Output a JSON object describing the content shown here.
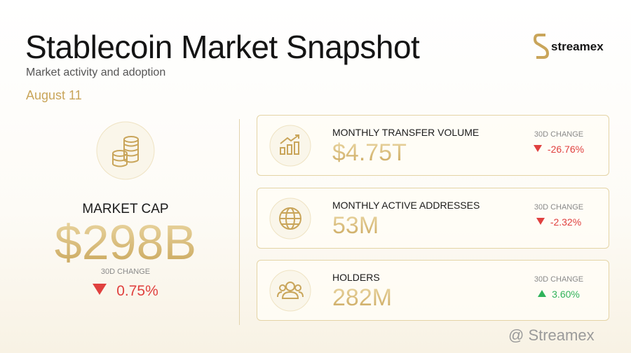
{
  "header": {
    "title": "Stablecoin Market Snapshot",
    "subtitle": "Market activity and adoption",
    "date": "August 11"
  },
  "brand": {
    "name": "streamex"
  },
  "market_cap": {
    "label": "MARKET CAP",
    "value": "$298B",
    "change_label": "30D CHANGE",
    "change": "0.75%",
    "trend": "down"
  },
  "metrics": [
    {
      "label": "MONTHLY TRANSFER VOLUME",
      "value": "$4.75T",
      "change_label": "30D CHANGE",
      "change": "-26.76%",
      "trend": "down"
    },
    {
      "label": "MONTHLY ACTIVE ADDRESSES",
      "value": "53M",
      "change_label": "30D CHANGE",
      "change": "-2.32%",
      "trend": "down"
    },
    {
      "label": "HOLDERS",
      "value": "282M",
      "change_label": "30D CHANGE",
      "change": "3.60%",
      "trend": "up"
    }
  ],
  "watermark": "@ Streamex"
}
